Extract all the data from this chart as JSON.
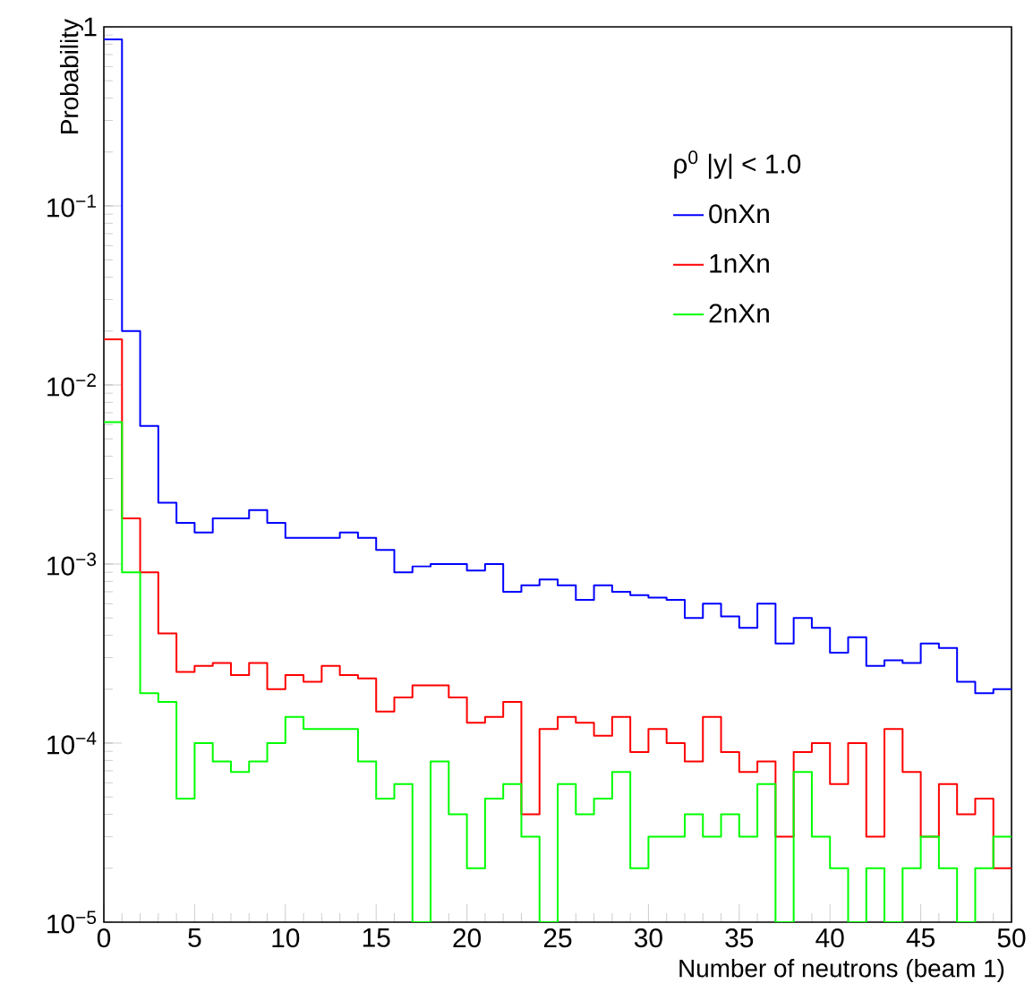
{
  "chart_data": {
    "type": "histogram",
    "xlabel": "Number of neutrons (beam 1)",
    "ylabel": "Probability",
    "legend_title": "ρ$^{0}$ |y| < 1.0",
    "bins": [
      0,
      1,
      2,
      3,
      4,
      5,
      6,
      7,
      8,
      9,
      10,
      11,
      12,
      13,
      14,
      15,
      16,
      17,
      18,
      19,
      20,
      21,
      22,
      23,
      24,
      25,
      26,
      27,
      28,
      29,
      30,
      31,
      32,
      33,
      34,
      35,
      36,
      37,
      38,
      39,
      40,
      41,
      42,
      43,
      44,
      45,
      46,
      47,
      48,
      49,
      50
    ],
    "series": [
      {
        "name": "0nXn",
        "color": "#0000ff",
        "values": [
          0.85,
          0.02,
          0.0059,
          0.0022,
          0.0017,
          0.0015,
          0.0018,
          0.0018,
          0.002,
          0.0017,
          0.0014,
          0.0014,
          0.0014,
          0.0015,
          0.0014,
          0.0012,
          0.0009,
          0.00097,
          0.001,
          0.001,
          0.00092,
          0.001,
          0.0007,
          0.00076,
          0.00082,
          0.00076,
          0.00063,
          0.00076,
          0.0007,
          0.00067,
          0.00065,
          0.00063,
          0.0005,
          0.0006,
          0.00051,
          0.00044,
          0.0006,
          0.00036,
          0.0005,
          0.00044,
          0.00032,
          0.00039,
          0.00027,
          0.00029,
          0.00028,
          0.00036,
          0.00034,
          0.00022,
          0.00019,
          0.0002
        ]
      },
      {
        "name": "1nXn",
        "color": "#ff0000",
        "values": [
          0.018,
          0.0018,
          0.0009,
          0.00041,
          0.00025,
          0.00027,
          0.00028,
          0.00024,
          0.00028,
          0.0002,
          0.00024,
          0.00022,
          0.00027,
          0.00024,
          0.00023,
          0.00015,
          0.00018,
          0.00021,
          0.00021,
          0.00018,
          0.00013,
          0.00014,
          0.00017,
          4e-05,
          0.00012,
          0.00014,
          0.00013,
          0.00011,
          0.00014,
          8.9e-05,
          0.00012,
          0.0001,
          7.9e-05,
          0.00014,
          8.9e-05,
          6.9e-05,
          7.9e-05,
          3e-05,
          8.9e-05,
          0.0001,
          5.9e-05,
          0.0001,
          3e-05,
          0.00012,
          6.9e-05,
          3e-05,
          5.9e-05,
          4e-05,
          4.9e-05,
          2e-05
        ]
      },
      {
        "name": "2nXn",
        "color": "#00ff00",
        "values": [
          0.0062,
          0.0009,
          0.00019,
          0.00017,
          4.9e-05,
          0.0001,
          7.9e-05,
          6.9e-05,
          7.9e-05,
          0.0001,
          0.00014,
          0.00012,
          0.00012,
          0.00012,
          7.9e-05,
          4.9e-05,
          5.9e-05,
          1e-05,
          7.9e-05,
          4e-05,
          2e-05,
          4.9e-05,
          5.9e-05,
          3e-05,
          1e-05,
          5.9e-05,
          4e-05,
          4.9e-05,
          6.9e-05,
          2e-05,
          3e-05,
          3e-05,
          4e-05,
          3e-05,
          4e-05,
          3e-05,
          5.9e-05,
          1e-05,
          6.9e-05,
          3e-05,
          2e-05,
          1e-05,
          2e-05,
          1e-05,
          2e-05,
          3e-05,
          2e-05,
          1e-05,
          2e-05,
          3e-05
        ]
      }
    ],
    "xlim": [
      0,
      50
    ],
    "xticks": [
      0,
      5,
      10,
      15,
      20,
      25,
      30,
      35,
      40,
      45,
      50
    ],
    "ylim": [
      1e-05,
      1
    ],
    "yticks": [
      {
        "value": 1e-05,
        "label": "10$^{−5}$"
      },
      {
        "value": 0.0001,
        "label": "10$^{−4}$"
      },
      {
        "value": 0.001,
        "label": "10$^{−3}$"
      },
      {
        "value": 0.01,
        "label": "10$^{−2}$"
      },
      {
        "value": 0.1,
        "label": "10$^{−1}$"
      },
      {
        "value": 1,
        "label": "1"
      }
    ],
    "log": "y",
    "legend": "top right",
    "grid": false
  }
}
